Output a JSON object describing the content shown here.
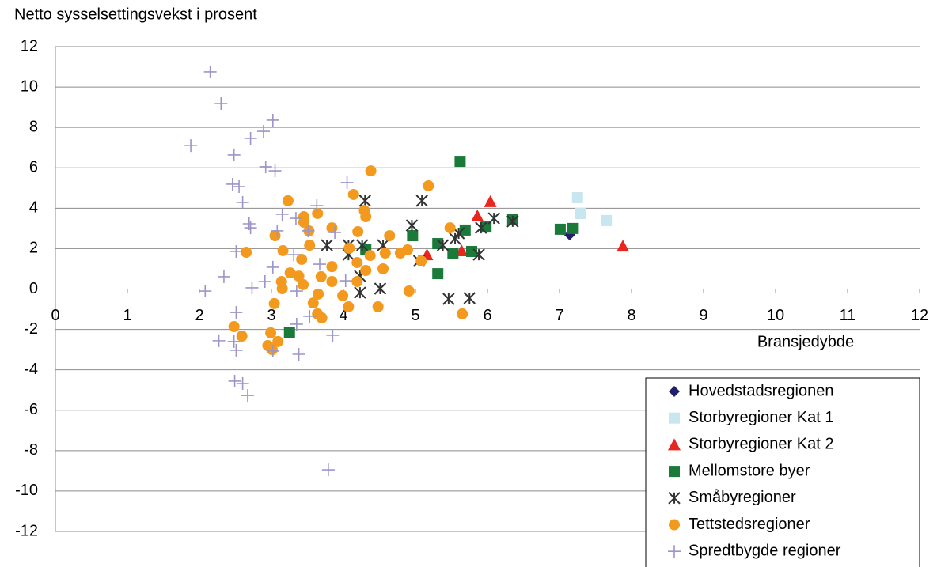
{
  "chart_data": {
    "type": "scatter",
    "y_label": "Netto sysselsettingsvekst i prosent",
    "x_label": "Bransjedybde",
    "xlim": [
      0,
      12
    ],
    "xticks": [
      0,
      1,
      2,
      3,
      4,
      5,
      6,
      7,
      8,
      9,
      10,
      11,
      12
    ],
    "ylim": [
      -12,
      12
    ],
    "yticks": [
      -12,
      -10,
      -8,
      -6,
      -4,
      -2,
      0,
      2,
      4,
      6,
      8,
      10,
      12
    ],
    "grid": true,
    "legend": "lower right",
    "series": [
      {
        "name": "Hovedstadsregionen",
        "color": "#1f1f6e",
        "marker": "diamond",
        "x": [
          7.14
        ],
        "values": [
          2.68
        ]
      },
      {
        "name": "Storbyregioner Kat 1",
        "color": "#c8e6ef",
        "marker": "square",
        "x": [
          7.25,
          7.29,
          7.65
        ],
        "values": [
          4.52,
          3.74,
          3.39
        ]
      },
      {
        "name": "Storbyregioner Kat 2",
        "color": "#e8261d",
        "marker": "triangle",
        "x": [
          7.88,
          6.04,
          5.86,
          5.16,
          5.64
        ],
        "values": [
          2.13,
          4.33,
          3.62,
          1.7,
          1.9
        ]
      },
      {
        "name": "Mellomstore byer",
        "color": "#1a7a3a",
        "marker": "square",
        "x": [
          5.62,
          3.25,
          4.31,
          4.96,
          5.31,
          5.31,
          5.52,
          5.69,
          5.78,
          5.98,
          6.35,
          7.01,
          7.18
        ],
        "values": [
          6.32,
          -2.17,
          1.94,
          2.64,
          0.76,
          2.25,
          1.78,
          2.92,
          1.86,
          3.07,
          3.46,
          2.96,
          3.0
        ]
      },
      {
        "name": "Småbyregioner",
        "color": "#333333",
        "marker": "asterisk",
        "x": [
          5.09,
          4.95,
          4.3,
          3.77,
          4.07,
          4.07,
          4.23,
          4.23,
          4.26,
          4.55,
          4.51,
          5.05,
          5.38,
          5.46,
          5.55,
          5.6,
          5.75,
          5.88,
          5.91,
          6.09,
          6.35
        ],
        "values": [
          4.37,
          3.15,
          4.37,
          2.17,
          2.17,
          1.7,
          0.64,
          -0.18,
          2.17,
          2.17,
          0.02,
          1.39,
          2.17,
          -0.49,
          2.49,
          2.76,
          -0.45,
          1.7,
          3.03,
          3.5,
          3.35
        ]
      },
      {
        "name": "Tettstedsregioner",
        "color": "#f39a1e",
        "marker": "circle",
        "x": [
          4.38,
          5.18,
          4.14,
          3.23,
          4.29,
          4.31,
          3.45,
          3.64,
          3.45,
          3.52,
          3.05,
          3.84,
          4.2,
          4.64,
          5.48,
          2.65,
          3.16,
          3.53,
          4.08,
          4.37,
          4.58,
          4.79,
          4.89,
          5.08,
          3.42,
          3.84,
          4.19,
          4.31,
          4.55,
          3.26,
          3.38,
          3.69,
          3.14,
          3.84,
          4.19,
          3.15,
          3.44,
          3.99,
          3.65,
          4.91,
          3.04,
          3.58,
          4.07,
          4.48,
          3.64,
          3.7,
          5.65,
          3.09,
          2.99,
          2.48,
          2.59,
          2.95,
          3.01
        ],
        "values": [
          5.85,
          5.11,
          4.68,
          4.37,
          3.89,
          3.58,
          3.58,
          3.74,
          3.31,
          2.88,
          2.64,
          3.03,
          2.84,
          2.64,
          3.03,
          1.82,
          1.9,
          2.17,
          2.02,
          1.66,
          1.78,
          1.78,
          1.94,
          1.39,
          1.47,
          1.11,
          1.31,
          0.92,
          1.0,
          0.8,
          0.64,
          0.61,
          0.37,
          0.37,
          0.37,
          0.02,
          0.22,
          -0.33,
          -0.25,
          -0.1,
          -0.72,
          -0.69,
          -0.88,
          -0.88,
          -1.23,
          -1.43,
          -1.23,
          -2.6,
          -2.17,
          -1.86,
          -2.33,
          -2.8,
          -3.0
        ]
      },
      {
        "name": "Spredtbygde regioner",
        "color": "#9b95c9",
        "marker": "plus",
        "x": [
          2.15,
          2.3,
          1.88,
          3.02,
          2.89,
          2.71,
          2.48,
          2.92,
          3.05,
          2.46,
          2.55,
          4.05,
          2.6,
          3.63,
          2.69,
          2.71,
          3.15,
          3.34,
          3.51,
          3.08,
          3.88,
          2.51,
          3.31,
          3.67,
          3.02,
          2.34,
          2.73,
          2.91,
          4.03,
          3.35,
          2.08,
          2.51,
          3.53,
          3.35,
          3.85,
          2.27,
          2.48,
          2.51,
          3.02,
          3.38,
          2.49,
          2.6,
          2.67,
          3.79
        ],
        "values": [
          10.75,
          9.18,
          7.1,
          8.36,
          7.81,
          7.46,
          6.64,
          6.05,
          5.85,
          5.19,
          5.07,
          5.27,
          4.29,
          4.13,
          3.23,
          3.03,
          3.7,
          3.5,
          2.88,
          2.88,
          2.8,
          1.86,
          1.7,
          1.23,
          1.08,
          0.61,
          0.06,
          0.37,
          0.41,
          -0.1,
          -0.1,
          -1.16,
          -1.35,
          -1.74,
          -2.29,
          -2.56,
          -2.6,
          -3.03,
          -3.07,
          -3.23,
          -4.56,
          -4.68,
          -5.27,
          -8.95
        ]
      }
    ]
  }
}
